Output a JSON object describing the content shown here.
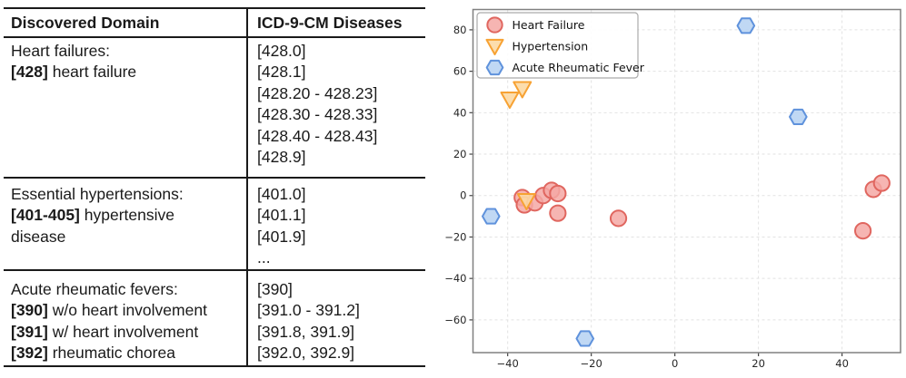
{
  "table": {
    "headers": [
      "Discovered Domain",
      "ICD-9-CM Diseases"
    ],
    "rows": [
      {
        "domain_lines": [
          {
            "b": "",
            "t": "Heart failures:"
          },
          {
            "b": "[428]",
            "t": " heart failure"
          }
        ],
        "code_lines": [
          "[428.0]",
          "[428.1]",
          "[428.20 - 428.23]",
          "[428.30 - 428.33]",
          "[428.40 - 428.43]",
          "[428.9]"
        ]
      },
      {
        "domain_lines": [
          {
            "b": "",
            "t": "Essential hypertensions:"
          },
          {
            "b": "[401-405]",
            "t": " hypertensive"
          },
          {
            "b": "",
            "t": "disease"
          }
        ],
        "code_lines": [
          "[401.0]",
          "[401.1]",
          "[401.9]",
          "..."
        ]
      },
      {
        "domain_lines": [
          {
            "b": "",
            "t": "Acute rheumatic fevers:"
          },
          {
            "b": "[390]",
            "t": " w/o heart involvement"
          },
          {
            "b": "[391]",
            "t": " w/ heart involvement"
          },
          {
            "b": "[392]",
            "t": " rheumatic chorea"
          }
        ],
        "code_lines": [
          "[390]",
          "[391.0 - 391.2]",
          "[391.8, 391.9]",
          "[392.0, 392.9]"
        ]
      }
    ]
  },
  "chart_data": {
    "type": "scatter",
    "title": "",
    "xlabel": "",
    "ylabel": "",
    "xlim": [
      -48.3,
      54.0
    ],
    "ylim": [
      -75.8,
      89.8
    ],
    "xticks": [
      -40,
      -20,
      0,
      20,
      40
    ],
    "yticks": [
      80,
      60,
      40,
      20,
      0,
      -20,
      -40,
      -60
    ],
    "grid": true,
    "legend_position": "upper left",
    "colors": {
      "grid": "#e2e2e2",
      "spine": "#808080",
      "tick": "#444444",
      "legend_border": "#aaaaaa",
      "legend_bg": "#ffffff"
    },
    "series": [
      {
        "name": "Heart Failure",
        "marker": "circle",
        "fill": "#f4a8a4",
        "fill_opacity": 0.85,
        "edge": "#e0665f",
        "points": [
          [
            -36.5,
            -1
          ],
          [
            -36,
            -4.5
          ],
          [
            -33.5,
            -3.5
          ],
          [
            -31.5,
            0
          ],
          [
            -29.5,
            2.5
          ],
          [
            -28,
            1
          ],
          [
            -28,
            -8.5
          ],
          [
            -13.5,
            -11
          ],
          [
            47.5,
            3
          ],
          [
            49.5,
            6
          ],
          [
            45,
            -17
          ]
        ]
      },
      {
        "name": "Hypertension",
        "marker": "triangle-down",
        "fill": "#fcd9a4",
        "fill_opacity": 0.9,
        "edge": "#f7a233",
        "points": [
          [
            -39.5,
            46.5
          ],
          [
            -36.5,
            51.5
          ],
          [
            -35.5,
            -2.5
          ]
        ]
      },
      {
        "name": "Acute Rheumatic Fever",
        "marker": "hexagon",
        "fill": "#b9d4f3",
        "fill_opacity": 0.9,
        "edge": "#5f92dc",
        "points": [
          [
            17,
            82
          ],
          [
            29.5,
            38
          ],
          [
            -44,
            -10
          ],
          [
            -21.5,
            -69
          ]
        ]
      }
    ]
  }
}
